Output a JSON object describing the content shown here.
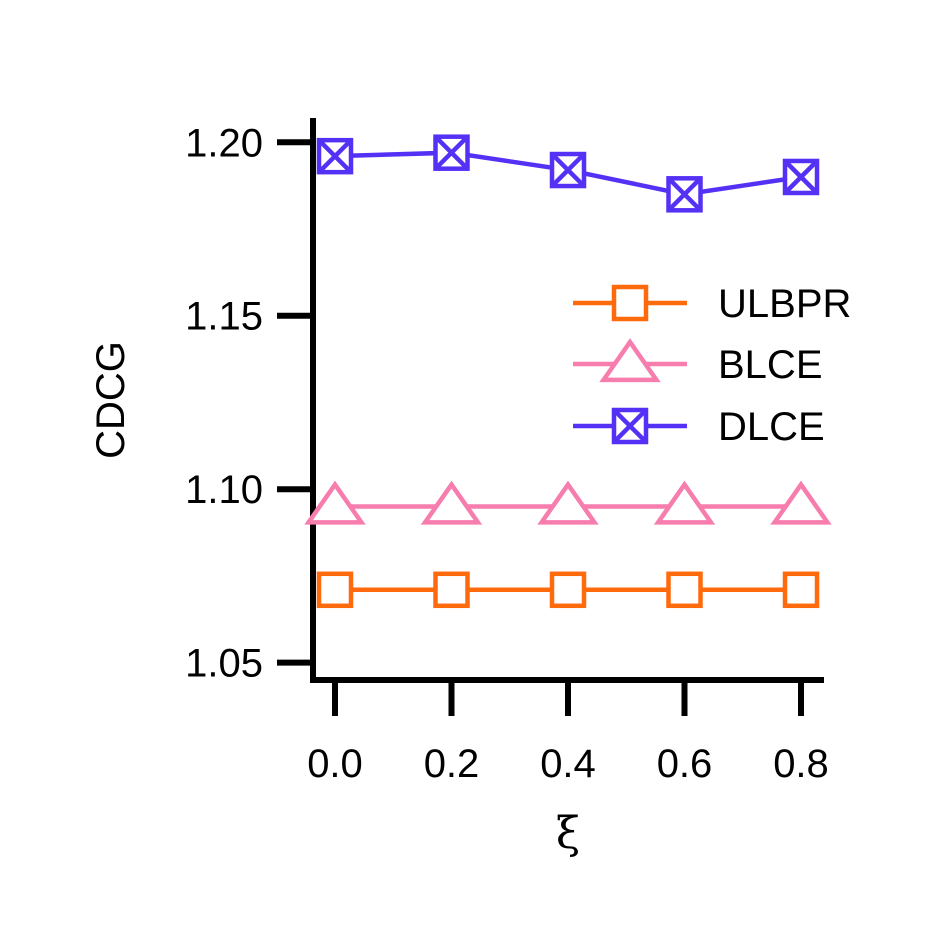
{
  "chart_data": {
    "type": "line",
    "title": "",
    "xlabel": "ξ",
    "ylabel": "CDCG",
    "x": [
      0.0,
      0.2,
      0.4,
      0.6,
      0.8
    ],
    "x_tick_labels": [
      "0.0",
      "0.2",
      "0.4",
      "0.6",
      "0.8"
    ],
    "y_ticks": [
      1.05,
      1.1,
      1.15,
      1.2
    ],
    "y_tick_labels": [
      "1.05",
      "1.10",
      "1.15",
      "1.20"
    ],
    "ylim": [
      1.045,
      1.207
    ],
    "grid": false,
    "legend_position": "right",
    "series": [
      {
        "name": "ULBPR",
        "marker": "square",
        "color": "#FF6A0D",
        "values": [
          1.071,
          1.071,
          1.071,
          1.071,
          1.071
        ]
      },
      {
        "name": "BLCE",
        "marker": "triangle",
        "color": "#F77DAE",
        "values": [
          1.095,
          1.095,
          1.095,
          1.095,
          1.095
        ]
      },
      {
        "name": "DLCE",
        "marker": "square-x",
        "color": "#5530F5",
        "values": [
          1.196,
          1.197,
          1.192,
          1.185,
          1.19
        ]
      }
    ]
  }
}
